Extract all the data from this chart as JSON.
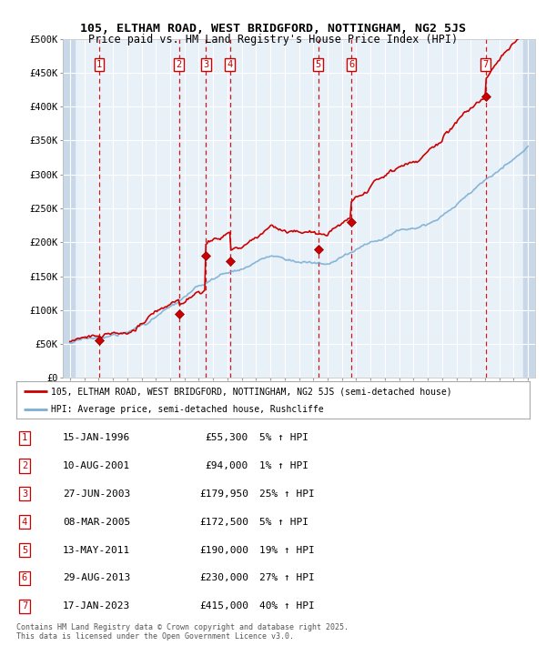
{
  "title1": "105, ELTHAM ROAD, WEST BRIDGFORD, NOTTINGHAM, NG2 5JS",
  "title2": "Price paid vs. HM Land Registry's House Price Index (HPI)",
  "legend_line1": "105, ELTHAM ROAD, WEST BRIDGFORD, NOTTINGHAM, NG2 5JS (semi-detached house)",
  "legend_line2": "HPI: Average price, semi-detached house, Rushcliffe",
  "footer1": "Contains HM Land Registry data © Crown copyright and database right 2025.",
  "footer2": "This data is licensed under the Open Government Licence v3.0.",
  "transactions": [
    {
      "num": 1,
      "date": "15-JAN-1996",
      "price": 55300,
      "price_str": "£55,300",
      "pct": "5%",
      "dir": "↑",
      "year": 1996.04
    },
    {
      "num": 2,
      "date": "10-AUG-2001",
      "price": 94000,
      "price_str": "£94,000",
      "pct": "1%",
      "dir": "↑",
      "year": 2001.61
    },
    {
      "num": 3,
      "date": "27-JUN-2003",
      "price": 179950,
      "price_str": "£179,950",
      "pct": "25%",
      "dir": "↑",
      "year": 2003.49
    },
    {
      "num": 4,
      "date": "08-MAR-2005",
      "price": 172500,
      "price_str": "£172,500",
      "pct": "5%",
      "dir": "↑",
      "year": 2005.18
    },
    {
      "num": 5,
      "date": "13-MAY-2011",
      "price": 190000,
      "price_str": "£190,000",
      "pct": "19%",
      "dir": "↑",
      "year": 2011.36
    },
    {
      "num": 6,
      "date": "29-AUG-2013",
      "price": 230000,
      "price_str": "£230,000",
      "pct": "27%",
      "dir": "↑",
      "year": 2013.66
    },
    {
      "num": 7,
      "date": "17-JAN-2023",
      "price": 415000,
      "price_str": "£415,000",
      "pct": "40%",
      "dir": "↑",
      "year": 2023.04
    }
  ],
  "hpi_color": "#7bafd4",
  "price_color": "#cc0000",
  "vline_color": "#cc0000",
  "plot_bg": "#e8f0f8",
  "grid_color": "#ffffff",
  "stripe_color": "#c8d8e8",
  "ylim": [
    0,
    500000
  ],
  "xlim_start": 1993.5,
  "xlim_end": 2026.5,
  "yticks": [
    0,
    50000,
    100000,
    150000,
    200000,
    250000,
    300000,
    350000,
    400000,
    450000,
    500000
  ],
  "ytick_labels": [
    "£0",
    "£50K",
    "£100K",
    "£150K",
    "£200K",
    "£250K",
    "£300K",
    "£350K",
    "£400K",
    "£450K",
    "£500K"
  ]
}
